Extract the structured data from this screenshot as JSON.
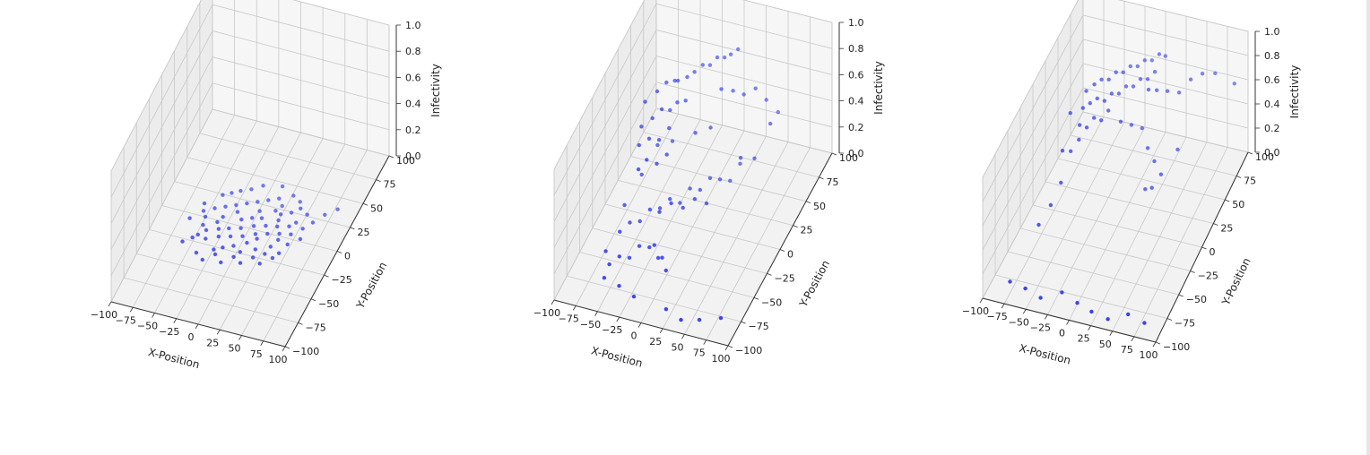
{
  "chart_data": [
    {
      "type": "scatter",
      "projection": "3d",
      "xlabel": "X-Position",
      "ylabel": "Y-Position",
      "zlabel": "Infectivity",
      "xlim": [
        -100,
        100
      ],
      "ylim": [
        -100,
        100
      ],
      "zlim": [
        0,
        1
      ],
      "xticks": [
        "−100",
        "−75",
        "−50",
        "−25",
        "0",
        "25",
        "50",
        "75",
        "100"
      ],
      "yticks": [
        "−100",
        "−75",
        "−50",
        "−25",
        "0",
        "25",
        "50",
        "75",
        "100"
      ],
      "zticks": [
        "0.0",
        "0.2",
        "0.4",
        "0.6",
        "0.8",
        "1.0"
      ],
      "grid": true,
      "marker_color": "#2a35e8",
      "points": [
        [
          -60,
          -28,
          0
        ],
        [
          -52,
          -22,
          0
        ],
        [
          -48,
          -18,
          0
        ],
        [
          -42,
          -12,
          0
        ],
        [
          -38,
          -20,
          0
        ],
        [
          -30,
          -8,
          0
        ],
        [
          -26,
          -15,
          0
        ],
        [
          -20,
          -5,
          0
        ],
        [
          -14,
          -12,
          0
        ],
        [
          -8,
          -2,
          0
        ],
        [
          -2,
          -9,
          0
        ],
        [
          4,
          3,
          0
        ],
        [
          10,
          -4,
          0
        ],
        [
          16,
          6,
          0
        ],
        [
          22,
          -1,
          0
        ],
        [
          28,
          8,
          0
        ],
        [
          34,
          2,
          0
        ],
        [
          40,
          11,
          0
        ],
        [
          46,
          4,
          0
        ],
        [
          -55,
          5,
          0
        ],
        [
          -45,
          10,
          0
        ],
        [
          -35,
          14,
          0
        ],
        [
          -25,
          18,
          0
        ],
        [
          -15,
          22,
          0
        ],
        [
          -5,
          26,
          0
        ],
        [
          5,
          30,
          0
        ],
        [
          15,
          34,
          0
        ],
        [
          25,
          20,
          0
        ],
        [
          35,
          24,
          0
        ],
        [
          45,
          16,
          0
        ],
        [
          55,
          12,
          0
        ],
        [
          -40,
          -35,
          0
        ],
        [
          -30,
          -40,
          0
        ],
        [
          -20,
          -32,
          0
        ],
        [
          -10,
          -38,
          0
        ],
        [
          0,
          -30,
          0
        ],
        [
          10,
          -34,
          0
        ],
        [
          20,
          -26,
          0
        ],
        [
          30,
          -30,
          0
        ],
        [
          40,
          -22,
          0
        ],
        [
          -65,
          -5,
          0
        ],
        [
          -50,
          0,
          0
        ],
        [
          -35,
          -2,
          0
        ],
        [
          -12,
          6,
          0
        ],
        [
          8,
          12,
          0
        ],
        [
          18,
          -18,
          0
        ],
        [
          32,
          -12,
          0
        ],
        [
          48,
          -6,
          0
        ],
        [
          58,
          2,
          0
        ],
        [
          62,
          20,
          0
        ],
        [
          70,
          30,
          0
        ],
        [
          80,
          38,
          0
        ],
        [
          -8,
          42,
          0
        ],
        [
          12,
          46,
          0
        ],
        [
          28,
          40,
          0
        ],
        [
          -28,
          32,
          0
        ],
        [
          -18,
          36,
          0
        ],
        [
          2,
          18,
          0
        ],
        [
          -44,
          24,
          0
        ],
        [
          22,
          28,
          0
        ],
        [
          38,
          36,
          0
        ],
        [
          -6,
          -20,
          0
        ],
        [
          6,
          -14,
          0
        ],
        [
          -24,
          -28,
          0
        ],
        [
          44,
          -16,
          0
        ],
        [
          52,
          26,
          0
        ],
        [
          -32,
          4,
          0
        ],
        [
          -2,
          10,
          0
        ],
        [
          14,
          -8,
          0
        ],
        [
          26,
          14,
          0
        ],
        [
          36,
          -4,
          0
        ],
        [
          -48,
          -8,
          0
        ],
        [
          -36,
          28,
          0
        ],
        [
          -16,
          -24,
          0
        ],
        [
          4,
          -24,
          0
        ],
        [
          18,
          22,
          0
        ],
        [
          30,
          -20,
          0
        ],
        [
          42,
          30,
          0
        ],
        [
          -58,
          12,
          0
        ],
        [
          -20,
          12,
          0
        ]
      ]
    },
    {
      "type": "scatter",
      "projection": "3d",
      "xlabel": "X-Position",
      "ylabel": "Y-Position",
      "zlabel": "Infectivity",
      "xlim": [
        -100,
        100
      ],
      "ylim": [
        -100,
        100
      ],
      "zlim": [
        0,
        1
      ],
      "xticks": [
        "−100",
        "−75",
        "−50",
        "−25",
        "0",
        "25",
        "50",
        "75",
        "100"
      ],
      "yticks": [
        "−100",
        "−75",
        "−50",
        "−25",
        "0",
        "25",
        "50",
        "75",
        "100"
      ],
      "zticks": [
        "0.0",
        "0.2",
        "0.4",
        "0.6",
        "0.8",
        "1.0"
      ],
      "grid": true,
      "marker_color": "#2a35e8",
      "points": [
        [
          -60,
          10,
          0.78
        ],
        [
          -52,
          20,
          0.8
        ],
        [
          -46,
          28,
          0.82
        ],
        [
          -40,
          34,
          0.8
        ],
        [
          -34,
          30,
          0.84
        ],
        [
          -28,
          38,
          0.82
        ],
        [
          -22,
          42,
          0.84
        ],
        [
          -16,
          48,
          0.86
        ],
        [
          -10,
          52,
          0.84
        ],
        [
          -4,
          56,
          0.88
        ],
        [
          2,
          60,
          0.86
        ],
        [
          8,
          62,
          0.88
        ],
        [
          14,
          66,
          0.9
        ],
        [
          -56,
          -4,
          0.7
        ],
        [
          -48,
          4,
          0.72
        ],
        [
          -42,
          12,
          0.74
        ],
        [
          -36,
          18,
          0.7
        ],
        [
          -30,
          22,
          0.74
        ],
        [
          -24,
          28,
          0.72
        ],
        [
          -54,
          -12,
          0.62
        ],
        [
          -46,
          -6,
          0.64
        ],
        [
          -38,
          0,
          0.6
        ],
        [
          -30,
          6,
          0.66
        ],
        [
          -50,
          -20,
          0.5
        ],
        [
          -44,
          -14,
          0.54
        ],
        [
          -36,
          -8,
          0.48
        ],
        [
          -28,
          -2,
          0.52
        ],
        [
          10,
          40,
          0.78
        ],
        [
          20,
          46,
          0.74
        ],
        [
          30,
          50,
          0.7
        ],
        [
          40,
          56,
          0.72
        ],
        [
          50,
          60,
          0.62
        ],
        [
          60,
          66,
          0.5
        ],
        [
          -20,
          -30,
          0.3
        ],
        [
          -10,
          -24,
          0.34
        ],
        [
          0,
          -18,
          0.28
        ],
        [
          10,
          -12,
          0.32
        ],
        [
          20,
          -6,
          0.26
        ],
        [
          -60,
          -60,
          0.05
        ],
        [
          -52,
          -54,
          0.08
        ],
        [
          -44,
          -48,
          0.04
        ],
        [
          -36,
          -42,
          0.1
        ],
        [
          -28,
          -36,
          0.06
        ],
        [
          -20,
          -40,
          0.12
        ],
        [
          -12,
          -46,
          0.08
        ],
        [
          -4,
          -52,
          0.14
        ],
        [
          4,
          -58,
          0.1
        ],
        [
          -62,
          -36,
          0.12
        ],
        [
          -54,
          -30,
          0.16
        ],
        [
          -46,
          -24,
          0.14
        ],
        [
          -38,
          -18,
          0.2
        ],
        [
          -30,
          -12,
          0.18
        ],
        [
          -22,
          -6,
          0.22
        ],
        [
          -14,
          0,
          0.16
        ],
        [
          -6,
          6,
          0.24
        ],
        [
          2,
          12,
          0.2
        ],
        [
          10,
          18,
          0.26
        ],
        [
          18,
          24,
          0.22
        ],
        [
          26,
          30,
          0.18
        ],
        [
          34,
          36,
          0.28
        ],
        [
          -60,
          -70,
          0.02
        ],
        [
          -40,
          -75,
          0.03
        ],
        [
          -20,
          -80,
          0.02
        ],
        [
          20,
          -85,
          0.03
        ],
        [
          40,
          -90,
          0.02
        ],
        [
          60,
          -88,
          0.04
        ],
        [
          80,
          -80,
          0.03
        ],
        [
          -70,
          -50,
          0.06
        ],
        [
          -66,
          -20,
          0.2
        ],
        [
          -58,
          0,
          0.3
        ],
        [
          -48,
          14,
          0.44
        ],
        [
          -38,
          26,
          0.4
        ],
        [
          -8,
          20,
          0.56
        ],
        [
          6,
          26,
          0.58
        ],
        [
          44,
          20,
          0.46
        ],
        [
          54,
          30,
          0.4
        ],
        [
          64,
          44,
          0.58
        ]
      ]
    },
    {
      "type": "scatter",
      "projection": "3d",
      "xlabel": "X-Position",
      "ylabel": "Y-Position",
      "zlabel": "Infectivity",
      "xlim": [
        -100,
        100
      ],
      "ylim": [
        -100,
        100
      ],
      "zlim": [
        0,
        1
      ],
      "xticks": [
        "−100",
        "−75",
        "−50",
        "−25",
        "0",
        "25",
        "50",
        "75",
        "100"
      ],
      "yticks": [
        "−100",
        "−75",
        "−50",
        "−25",
        "0",
        "25",
        "50",
        "75",
        "100"
      ],
      "zticks": [
        "0.0",
        "0.2",
        "0.4",
        "0.6",
        "0.8",
        "1.0"
      ],
      "grid": true,
      "marker_color": "#2a35e8",
      "points": [
        [
          -50,
          20,
          0.88
        ],
        [
          -44,
          26,
          0.9
        ],
        [
          -38,
          30,
          0.92
        ],
        [
          -32,
          34,
          0.9
        ],
        [
          -26,
          38,
          0.94
        ],
        [
          -20,
          42,
          0.92
        ],
        [
          -14,
          46,
          0.95
        ],
        [
          -8,
          50,
          0.93
        ],
        [
          -2,
          54,
          0.96
        ],
        [
          4,
          58,
          0.94
        ],
        [
          10,
          62,
          0.97
        ],
        [
          16,
          64,
          0.95
        ],
        [
          -48,
          10,
          0.82
        ],
        [
          -42,
          14,
          0.84
        ],
        [
          -36,
          18,
          0.86
        ],
        [
          -30,
          22,
          0.82
        ],
        [
          -24,
          26,
          0.86
        ],
        [
          -18,
          30,
          0.84
        ],
        [
          -12,
          34,
          0.88
        ],
        [
          -6,
          38,
          0.86
        ],
        [
          0,
          42,
          0.9
        ],
        [
          6,
          46,
          0.88
        ],
        [
          12,
          50,
          0.92
        ],
        [
          -46,
          0,
          0.76
        ],
        [
          -40,
          4,
          0.72
        ],
        [
          -34,
          8,
          0.78
        ],
        [
          -28,
          12,
          0.74
        ],
        [
          -22,
          16,
          0.8
        ],
        [
          20,
          40,
          0.86
        ],
        [
          30,
          44,
          0.84
        ],
        [
          40,
          50,
          0.8
        ],
        [
          50,
          56,
          0.88
        ],
        [
          60,
          62,
          0.9
        ],
        [
          70,
          70,
          0.86
        ],
        [
          -60,
          -10,
          0.6
        ],
        [
          -54,
          -4,
          0.56
        ],
        [
          -48,
          2,
          0.62
        ],
        [
          -10,
          20,
          0.7
        ],
        [
          0,
          24,
          0.66
        ],
        [
          10,
          28,
          0.62
        ],
        [
          20,
          22,
          0.52
        ],
        [
          30,
          18,
          0.46
        ],
        [
          40,
          14,
          0.4
        ],
        [
          50,
          30,
          0.5
        ],
        [
          -80,
          -80,
          0.02
        ],
        [
          -60,
          -84,
          0.03
        ],
        [
          -40,
          -88,
          0.02
        ],
        [
          -20,
          -80,
          0.04
        ],
        [
          0,
          -84,
          0.02
        ],
        [
          20,
          -90,
          0.03
        ],
        [
          40,
          -92,
          0.02
        ],
        [
          60,
          -86,
          0.05
        ],
        [
          80,
          -88,
          0.03
        ],
        [
          -70,
          -40,
          0.2
        ],
        [
          -62,
          -30,
          0.3
        ],
        [
          -56,
          -20,
          0.42
        ],
        [
          24,
          10,
          0.28
        ],
        [
          34,
          6,
          0.34
        ],
        [
          90,
          74,
          0.78
        ],
        [
          -66,
          16,
          0.7
        ],
        [
          14,
          34,
          0.9
        ]
      ]
    }
  ]
}
